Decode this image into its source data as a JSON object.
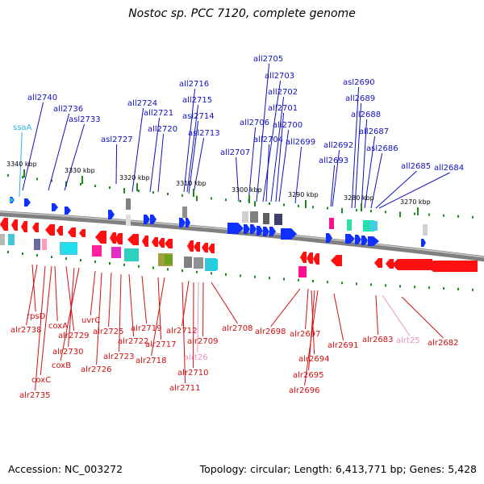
{
  "title": "Nostoc sp. PCC 7120, complete genome",
  "footer": {
    "accession": "Accession: NC_003272",
    "summary": "Topology: circular; Length: 6,413,771 bp; Genes: 5,428"
  },
  "colors": {
    "forward_label": "#1010c0",
    "reverse_label": "#d01010",
    "rna_forward": "#30b0e0",
    "rna_reverse": "#f090c0",
    "forward_gene": "#1030ff",
    "reverse_gene": "#ff1010",
    "backbone": "#808080",
    "tick_marker": "#1a8a1a"
  },
  "scale_labels": [
    "3340 kbp",
    "3330 kbp",
    "3320 kbp",
    "3310 kbp",
    "3300 kbp",
    "3290 kbp",
    "3280 kbp",
    "3270 kbp"
  ],
  "forward_labels": [
    "ssaA",
    "all2740",
    "all2736",
    "asl2733",
    "asl2727",
    "all2724",
    "all2721",
    "all2720",
    "all2716",
    "all2715",
    "asl2714",
    "asl2713",
    "all2707",
    "all2706",
    "all2705",
    "all2703",
    "all2704",
    "all2702",
    "all2701",
    "all2700",
    "all2699",
    "all2692",
    "all2693",
    "asl2690",
    "all2689",
    "all2688",
    "all2687",
    "asl2686",
    "all2685",
    "all2684"
  ],
  "reverse_labels": [
    "rpsD",
    "alr2738",
    "coxA",
    "alr2729",
    "alr2730",
    "coxB",
    "coxC",
    "alr2735",
    "uvrC",
    "alr2725",
    "alr2726",
    "alr2722",
    "alr2723",
    "alr2719",
    "alr2717",
    "alr2718",
    "alr2712",
    "alr2709",
    "alrt26",
    "alr2710",
    "alr2711",
    "alr2708",
    "alr2698",
    "alr2697",
    "alr2694",
    "alr2695",
    "alr2696",
    "alr2691",
    "alr2683",
    "alrt25",
    "alr2682"
  ]
}
